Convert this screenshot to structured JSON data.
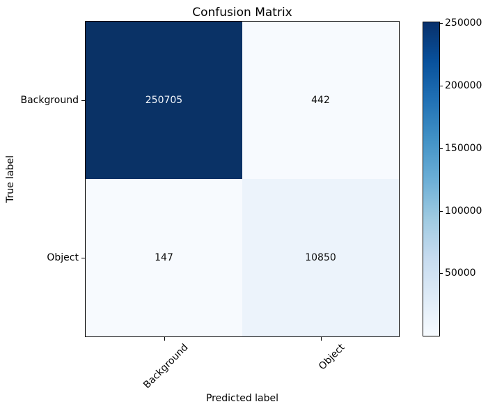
{
  "chart_data": {
    "type": "heatmap",
    "title": "Confusion Matrix",
    "xlabel": "Predicted label",
    "ylabel": "True label",
    "x_tick_labels": [
      "Background",
      "Object"
    ],
    "y_tick_labels": [
      "Background",
      "Object"
    ],
    "matrix": [
      [
        250705,
        442
      ],
      [
        147,
        10850
      ]
    ],
    "vmin": 147,
    "vmax": 250705,
    "colorbar_ticks": [
      250000,
      200000,
      150000,
      100000,
      50000
    ],
    "colorbar_tick_labels": [
      "250000",
      "200000",
      "150000",
      "100000",
      "50000"
    ],
    "cell_colors": [
      [
        "#0a3266",
        "#f7fafe"
      ],
      [
        "#f7fafe",
        "#ecf3fb"
      ]
    ],
    "cell_text_colors": [
      [
        "#f2f6fb",
        "#0d0d0d"
      ],
      [
        "#0d0d0d",
        "#0d0d0d"
      ]
    ],
    "colormap": {
      "name": "Blues",
      "stops": [
        "#f7fbff",
        "#deebf7",
        "#c6dbef",
        "#9ecae1",
        "#6baed6",
        "#4292c6",
        "#2171b5",
        "#08519c",
        "#08306b"
      ]
    },
    "grid": false,
    "legend": false
  }
}
